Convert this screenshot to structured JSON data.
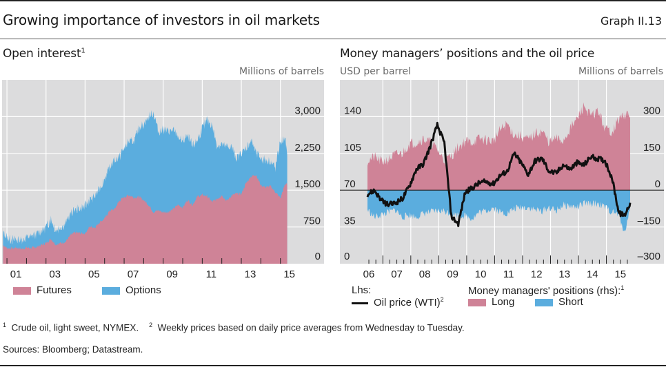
{
  "header": {
    "title": "Growing importance of investors in oil markets",
    "graph_number": "Graph II.13"
  },
  "colors": {
    "futures": "#cf8397",
    "options": "#5badde",
    "long": "#cf8397",
    "short": "#5badde",
    "oil": "#111111",
    "plot_bg": "#dcdcdd",
    "grid": "#ffffff"
  },
  "left_panel": {
    "title": "Open interest",
    "title_footnote": "1",
    "unit_right": "Millions of barrels",
    "legend": [
      {
        "label": "Futures",
        "color_key": "futures"
      },
      {
        "label": "Options",
        "color_key": "options"
      }
    ]
  },
  "right_panel": {
    "title": "Money managers’ positions and the oil price",
    "unit_left": "USD per barrel",
    "unit_right": "Millions of barrels",
    "legend_lhs_heading": "Lhs:",
    "legend_rhs_heading": "Money managers' positions (rhs):",
    "legend_rhs_footnote": "1",
    "legend": [
      {
        "label": "Oil price (WTI)",
        "footnote": "2",
        "type": "line"
      },
      {
        "label": "Long",
        "type": "area"
      },
      {
        "label": "Short",
        "type": "area"
      }
    ]
  },
  "footnotes": [
    {
      "mark": "1",
      "text": "Crude oil, light sweet, NYMEX."
    },
    {
      "mark": "2",
      "text": "Weekly prices based on daily price averages from Wednesday to Tuesday."
    }
  ],
  "sources": "Sources: Bloomberg; Datastream.",
  "chart_data": [
    {
      "type": "area",
      "stacked": true,
      "title": "Open interest",
      "ylabel": "Millions of barrels",
      "y_axis_side": "right",
      "ylim": [
        0,
        3750
      ],
      "yticks": [
        0,
        750,
        1500,
        2250,
        3000
      ],
      "ytick_labels": [
        "0",
        "750",
        "1,500",
        "2,250",
        "3,000"
      ],
      "xlim": [
        2000.5,
        2015.5
      ],
      "xticks": [
        2001,
        2003,
        2005,
        2007,
        2009,
        2011,
        2013,
        2015
      ],
      "xtick_labels": [
        "01",
        "03",
        "05",
        "07",
        "09",
        "11",
        "13",
        "15"
      ],
      "grid": true,
      "legend_position": "bottom",
      "x": [
        2000.55,
        2000.75,
        2001.0,
        2001.25,
        2001.5,
        2001.75,
        2002.0,
        2002.25,
        2002.5,
        2002.75,
        2003.0,
        2003.25,
        2003.5,
        2003.75,
        2004.0,
        2004.25,
        2004.5,
        2004.75,
        2005.0,
        2005.25,
        2005.5,
        2005.75,
        2006.0,
        2006.25,
        2006.5,
        2006.75,
        2007.0,
        2007.25,
        2007.5,
        2007.75,
        2008.0,
        2008.25,
        2008.5,
        2008.75,
        2009.0,
        2009.25,
        2009.5,
        2009.75,
        2010.0,
        2010.25,
        2010.5,
        2010.75,
        2011.0,
        2011.25,
        2011.5,
        2011.75,
        2012.0,
        2012.25,
        2012.5,
        2012.75,
        2013.0,
        2013.25,
        2013.5,
        2013.75,
        2014.0,
        2014.25,
        2014.5,
        2014.75,
        2015.0,
        2015.1
      ],
      "series": [
        {
          "name": "Futures",
          "values": [
            380,
            320,
            310,
            330,
            300,
            330,
            320,
            340,
            380,
            420,
            510,
            390,
            420,
            450,
            580,
            640,
            620,
            620,
            760,
            740,
            850,
            920,
            1080,
            1110,
            1280,
            1360,
            1400,
            1350,
            1360,
            1300,
            1200,
            1050,
            1090,
            1050,
            1060,
            1110,
            1200,
            1150,
            1300,
            1200,
            1370,
            1400,
            1380,
            1260,
            1320,
            1400,
            1280,
            1390,
            1430,
            1420,
            1650,
            1780,
            1820,
            1600,
            1560,
            1580,
            1460,
            1340,
            1630,
            1620
          ]
        },
        {
          "name": "Options",
          "values": [
            260,
            220,
            180,
            160,
            190,
            210,
            230,
            260,
            290,
            320,
            420,
            300,
            330,
            380,
            420,
            460,
            500,
            560,
            550,
            640,
            700,
            800,
            880,
            1000,
            900,
            1000,
            1100,
            1150,
            1400,
            1550,
            1800,
            2050,
            1600,
            1700,
            1650,
            1600,
            1400,
            1350,
            1300,
            1200,
            1150,
            1350,
            1550,
            1550,
            1100,
            1050,
            1100,
            1000,
            700,
            850,
            700,
            750,
            450,
            550,
            550,
            500,
            500,
            1150,
            900,
            620
          ]
        }
      ]
    },
    {
      "type": "line+area",
      "title": "Money managers’ positions and the oil price",
      "xlim": [
        2005.5,
        2015.8
      ],
      "xticks": [
        2006,
        2007,
        2008,
        2009,
        2010,
        2011,
        2012,
        2013,
        2014,
        2015
      ],
      "xtick_labels": [
        "06",
        "07",
        "08",
        "09",
        "10",
        "11",
        "12",
        "13",
        "14",
        "15"
      ],
      "grid": true,
      "legend_position": "bottom",
      "left_axis": {
        "label": "USD per barrel",
        "ylim": [
          0,
          175
        ],
        "yticks": [
          0,
          35,
          70,
          105,
          140
        ]
      },
      "right_axis": {
        "label": "Millions of barrels",
        "ylim": [
          -300,
          450
        ],
        "yticks": [
          -300,
          -150,
          0,
          150,
          300
        ],
        "ytick_labels": [
          "–300",
          "–150",
          "0",
          "150",
          "300"
        ]
      },
      "x": [
        2006.0,
        2006.25,
        2006.5,
        2006.75,
        2007.0,
        2007.25,
        2007.5,
        2007.75,
        2008.0,
        2008.25,
        2008.5,
        2008.75,
        2009.0,
        2009.25,
        2009.5,
        2009.75,
        2010.0,
        2010.25,
        2010.5,
        2010.75,
        2011.0,
        2011.25,
        2011.5,
        2011.75,
        2012.0,
        2012.25,
        2012.5,
        2012.75,
        2013.0,
        2013.25,
        2013.5,
        2013.75,
        2014.0,
        2014.25,
        2014.5,
        2014.75,
        2015.0,
        2015.2,
        2015.4
      ],
      "series": [
        {
          "name": "Long",
          "axis": "right",
          "values": [
            120,
            135,
            115,
            125,
            145,
            150,
            190,
            195,
            210,
            195,
            165,
            120,
            140,
            175,
            200,
            195,
            210,
            205,
            200,
            245,
            270,
            225,
            220,
            205,
            230,
            240,
            195,
            210,
            200,
            250,
            290,
            345,
            300,
            325,
            250,
            240,
            290,
            310,
            300
          ]
        },
        {
          "name": "Short",
          "axis": "right",
          "values": [
            -80,
            -110,
            -100,
            -90,
            -80,
            -110,
            -100,
            -110,
            -95,
            -90,
            -85,
            -85,
            -95,
            -100,
            -105,
            -115,
            -90,
            -85,
            -70,
            -90,
            -95,
            -75,
            -70,
            -70,
            -80,
            -85,
            -70,
            -85,
            -60,
            -65,
            -70,
            -55,
            -55,
            -55,
            -70,
            -90,
            -100,
            -175,
            -70
          ]
        },
        {
          "name": "Oil price (WTI)",
          "axis": "left",
          "values": [
            66,
            70,
            60,
            56,
            58,
            62,
            74,
            90,
            95,
            112,
            132,
            115,
            45,
            38,
            68,
            72,
            77,
            78,
            76,
            84,
            88,
            105,
            96,
            85,
            98,
            100,
            88,
            86,
            94,
            90,
            96,
            94,
            102,
            100,
            98,
            82,
            48,
            46,
            58
          ]
        }
      ]
    }
  ]
}
